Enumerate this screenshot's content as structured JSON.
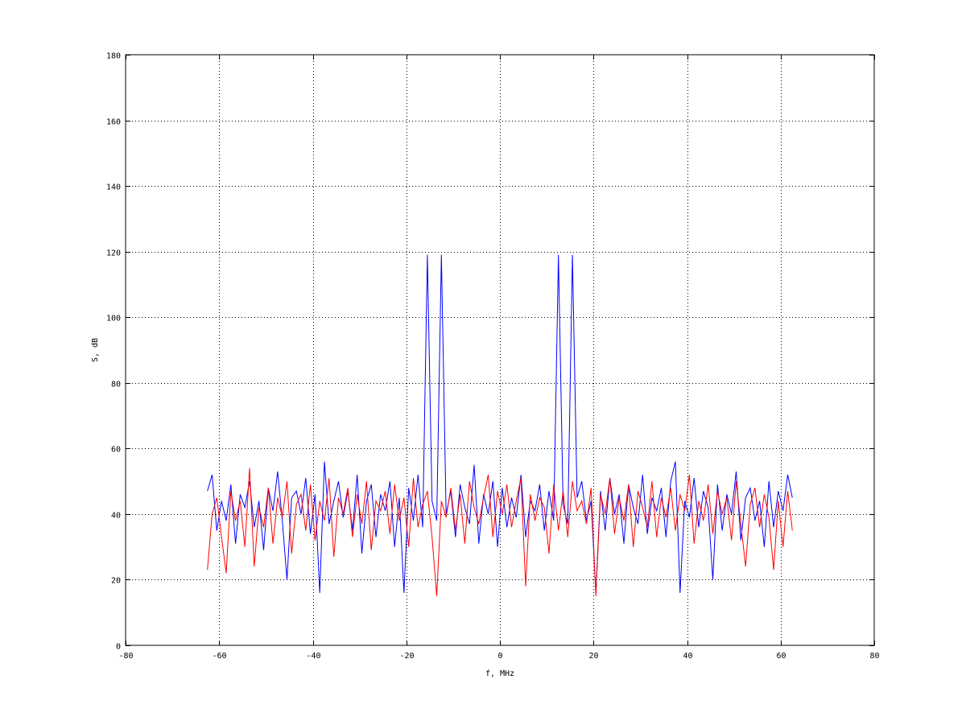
{
  "chart_data": {
    "type": "line",
    "title": "",
    "xlabel": "f, MHz",
    "ylabel": "S, dB",
    "xlim": [
      -80,
      80
    ],
    "ylim": [
      0,
      180
    ],
    "xticks": [
      -80,
      -60,
      -40,
      -20,
      0,
      20,
      40,
      60,
      80
    ],
    "yticks": [
      0,
      20,
      40,
      60,
      80,
      100,
      120,
      140,
      160,
      180
    ],
    "grid": true,
    "legend": "none",
    "x_range": [
      -62.5,
      62.5
    ],
    "series": [
      {
        "color": "#0000ff",
        "values": [
          47,
          52,
          35,
          44,
          38,
          49,
          31,
          46,
          42,
          50,
          36,
          44,
          29,
          48,
          41,
          53,
          38,
          20,
          45,
          47,
          40,
          51,
          34,
          46,
          16,
          56,
          37,
          44,
          50,
          39,
          47,
          35,
          52,
          28,
          44,
          49,
          33,
          46,
          41,
          50,
          30,
          45,
          16,
          48,
          38,
          52,
          36,
          119,
          44,
          38,
          119,
          40,
          47,
          33,
          49,
          42,
          37,
          55,
          31,
          46,
          40,
          50,
          30,
          48,
          36,
          45,
          39,
          52,
          33,
          44,
          41,
          49,
          35,
          47,
          38,
          119,
          43,
          37,
          119,
          45,
          50,
          38,
          44,
          16,
          47,
          35,
          51,
          40,
          46,
          31,
          49,
          42,
          37,
          52,
          34,
          45,
          41,
          48,
          33,
          50,
          56,
          16,
          44,
          39,
          51,
          36,
          47,
          42,
          20,
          49,
          35,
          46,
          40,
          53,
          32,
          45,
          48,
          38,
          44,
          30,
          50,
          36,
          47,
          41,
          52,
          45
        ]
      },
      {
        "color": "#ff0000",
        "values": [
          23,
          40,
          45,
          33,
          22,
          47,
          38,
          44,
          30,
          54,
          24,
          42,
          36,
          48,
          31,
          45,
          39,
          50,
          28,
          43,
          46,
          35,
          49,
          32,
          44,
          38,
          51,
          27,
          45,
          40,
          48,
          33,
          46,
          37,
          50,
          29,
          44,
          41,
          47,
          34,
          49,
          38,
          45,
          30,
          51,
          36,
          43,
          47,
          33,
          15,
          44,
          39,
          48,
          35,
          46,
          31,
          50,
          42,
          37,
          45,
          52,
          33,
          47,
          40,
          49,
          36,
          44,
          51,
          18,
          46,
          38,
          45,
          42,
          28,
          49,
          35,
          47,
          33,
          50,
          41,
          44,
          37,
          48,
          15,
          46,
          40,
          51,
          34,
          45,
          38,
          49,
          30,
          47,
          42,
          36,
          50,
          33,
          45,
          39,
          48,
          35,
          46,
          41,
          52,
          31,
          44,
          38,
          49,
          34,
          47,
          40,
          45,
          32,
          50,
          37,
          24,
          43,
          48,
          36,
          46,
          39,
          23,
          44,
          30,
          47,
          35
        ]
      }
    ]
  }
}
